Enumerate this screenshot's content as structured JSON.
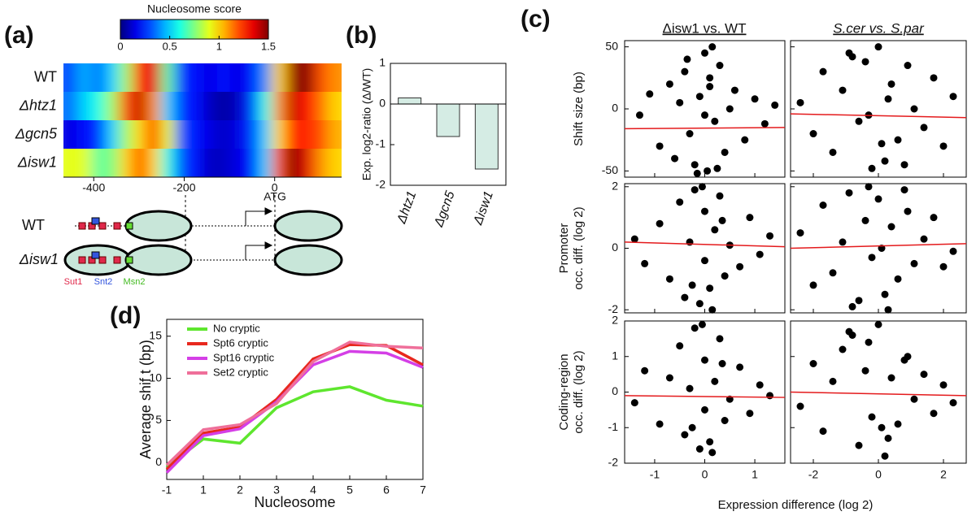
{
  "chart_data": [
    {
      "type": "heatmap",
      "panel": "(a)",
      "colorbar_title": "Nucleosome score",
      "colormap": "jet",
      "clim": [
        0,
        1.5
      ],
      "cticks": [
        0,
        0.5,
        1,
        1.5
      ],
      "rows": [
        "WT",
        "Δhtz1",
        "Δgcn5",
        "Δisw1"
      ],
      "xlim": [
        -467,
        148
      ],
      "xticks": [
        -400,
        -200,
        0
      ],
      "values": [
        [
          0.3,
          0.45,
          0.35,
          0.5,
          0.8,
          1.3,
          1.35,
          0.7,
          0.25,
          0.2,
          0.15,
          0.2,
          0.15,
          0.2,
          0.4,
          1.0,
          1.45,
          1.5,
          1.2,
          1.1
        ],
        [
          0.35,
          0.5,
          0.6,
          0.8,
          1.2,
          1.4,
          1.1,
          0.5,
          0.25,
          0.2,
          0.1,
          0.05,
          0.1,
          0.25,
          0.6,
          1.1,
          1.4,
          1.3,
          1.15,
          1.0
        ],
        [
          0.15,
          0.2,
          0.25,
          0.5,
          0.8,
          1.0,
          1.25,
          0.9,
          0.3,
          0.2,
          0.15,
          0.1,
          0.15,
          0.25,
          0.5,
          1.0,
          1.3,
          1.25,
          1.2,
          1.05
        ],
        [
          0.9,
          0.9,
          0.7,
          0.75,
          1.0,
          1.2,
          1.0,
          0.6,
          0.3,
          0.2,
          0.1,
          0.1,
          0.15,
          0.2,
          0.5,
          1.2,
          1.5,
          1.35,
          1.1,
          1.0
        ]
      ]
    },
    {
      "type": "bar",
      "panel": "(b)",
      "ylabel": "Exp. log2-ratio (Δ/WT)",
      "categories": [
        "Δhtz1",
        "Δgcn5",
        "Δisw1"
      ],
      "values": [
        0.15,
        -0.8,
        -1.6
      ],
      "color": "#d5ece4",
      "ylim": [
        -2,
        1
      ],
      "yticks": [
        -2,
        -1,
        0,
        1
      ]
    },
    {
      "type": "scatter",
      "color": "#000",
      "xlim": [
        -1.6,
        1.6
      ],
      "xticks": [
        -1,
        0,
        1
      ],
      "ylim": [
        -55,
        55
      ],
      "yticks": [
        -50,
        0,
        50
      ],
      "x": [
        -1.3,
        -1.1,
        -0.9,
        -0.7,
        -0.6,
        -0.5,
        -0.4,
        -0.3,
        -0.2,
        -0.1,
        0,
        0.05,
        0.1,
        0.2,
        0.3,
        0.4,
        0.5,
        0.6,
        0.8,
        1.0,
        1.2,
        1.4,
        -0.15,
        0.15,
        0,
        0.25,
        -0.35,
        0.1
      ],
      "y": [
        -5,
        12,
        -30,
        20,
        -40,
        5,
        30,
        -20,
        -45,
        10,
        45,
        -50,
        25,
        -10,
        35,
        -35,
        0,
        15,
        -25,
        8,
        -12,
        3,
        -52,
        50,
        -5,
        -48,
        40,
        18
      ],
      "fit": {
        "color": "#e41a1c",
        "values": [
          -16,
          -15
        ]
      }
    },
    {
      "type": "scatter",
      "color": "#000",
      "xlim": [
        -2.7,
        2.7
      ],
      "xticks": [
        -2,
        0,
        2
      ],
      "ylim": [
        -55,
        55
      ],
      "yticks": [
        -50,
        0,
        50
      ],
      "x": [
        -2.4,
        -2.0,
        -1.7,
        -1.4,
        -1.1,
        -0.9,
        -0.6,
        -0.4,
        -0.2,
        0,
        0.2,
        0.4,
        0.6,
        0.9,
        1.1,
        1.4,
        1.7,
        2.0,
        2.3,
        -0.3,
        0.3,
        0.8,
        -0.8,
        0.1
      ],
      "y": [
        5,
        -20,
        30,
        -35,
        15,
        45,
        -10,
        38,
        -48,
        50,
        -42,
        20,
        -25,
        35,
        0,
        -15,
        25,
        -30,
        10,
        -5,
        8,
        -45,
        42,
        -28
      ],
      "fit": {
        "color": "#e41a1c",
        "values": [
          -4,
          -7
        ]
      }
    },
    {
      "type": "scatter",
      "color": "#000",
      "xlim": [
        -1.6,
        1.6
      ],
      "xticks": [
        -1,
        0,
        1
      ],
      "ylim": [
        -2.1,
        2.1
      ],
      "yticks": [
        -2,
        0,
        2
      ],
      "x": [
        -1.4,
        -1.2,
        -0.9,
        -0.7,
        -0.5,
        -0.4,
        -0.3,
        -0.2,
        -0.1,
        0,
        0,
        0.1,
        0.2,
        0.3,
        0.4,
        0.5,
        0.7,
        0.9,
        1.1,
        1.3,
        -0.05,
        0.15,
        -0.25,
        0.35
      ],
      "y": [
        0.3,
        -0.5,
        0.8,
        -1.0,
        1.5,
        -1.6,
        0.2,
        1.9,
        -1.8,
        1.2,
        -0.4,
        -1.3,
        0.6,
        1.7,
        -0.9,
        0.1,
        -0.6,
        1.0,
        -0.2,
        0.4,
        2.0,
        -2.0,
        -1.2,
        0.9
      ],
      "fit": {
        "color": "#e41a1c",
        "values": [
          0.2,
          0.05
        ]
      }
    },
    {
      "type": "scatter",
      "color": "#000",
      "xlim": [
        -2.7,
        2.7
      ],
      "xticks": [
        -2,
        0,
        2
      ],
      "ylim": [
        -2.1,
        2.1
      ],
      "yticks": [
        -2,
        0,
        2
      ],
      "x": [
        -2.4,
        -2.0,
        -1.7,
        -1.4,
        -1.1,
        -0.9,
        -0.6,
        -0.4,
        -0.2,
        0,
        0.2,
        0.4,
        0.6,
        0.9,
        1.1,
        1.4,
        1.7,
        2.0,
        2.3,
        -0.3,
        0.3,
        0.8,
        -0.8,
        0.1
      ],
      "y": [
        0.5,
        -1.2,
        1.4,
        -0.8,
        0.2,
        1.8,
        -1.7,
        0.9,
        -0.3,
        1.6,
        -1.5,
        0.7,
        -1.0,
        1.2,
        -0.5,
        0.3,
        1.0,
        -0.6,
        -0.1,
        2.0,
        -2.0,
        1.9,
        -1.9,
        0.0
      ],
      "fit": {
        "color": "#e41a1c",
        "values": [
          0,
          0.15
        ]
      }
    },
    {
      "type": "scatter",
      "color": "#000",
      "xlim": [
        -1.6,
        1.6
      ],
      "xticks": [
        -1,
        0,
        1
      ],
      "ylim": [
        -2,
        2
      ],
      "yticks": [
        -2,
        -1,
        0,
        1,
        2
      ],
      "x": [
        -1.4,
        -1.2,
        -0.9,
        -0.7,
        -0.5,
        -0.4,
        -0.3,
        -0.2,
        -0.1,
        0,
        0,
        0.1,
        0.2,
        0.3,
        0.4,
        0.5,
        0.7,
        0.9,
        1.1,
        1.3,
        -0.05,
        0.15,
        -0.25,
        0.35
      ],
      "y": [
        -0.3,
        0.6,
        -0.9,
        0.4,
        1.3,
        -1.2,
        0.1,
        1.8,
        -1.6,
        0.9,
        -0.5,
        -1.4,
        0.3,
        1.5,
        -0.8,
        -0.2,
        0.7,
        -0.6,
        0.2,
        -0.1,
        1.9,
        -1.7,
        -1.0,
        0.8
      ],
      "fit": {
        "color": "#e41a1c",
        "values": [
          -0.1,
          -0.15
        ]
      }
    },
    {
      "type": "scatter",
      "color": "#000",
      "xlim": [
        -2.7,
        2.7
      ],
      "xticks": [
        -2,
        0,
        2
      ],
      "ylim": [
        -2,
        2
      ],
      "yticks": [
        -2,
        -1,
        0,
        1,
        2
      ],
      "x": [
        -2.4,
        -2.0,
        -1.7,
        -1.4,
        -1.1,
        -0.9,
        -0.6,
        -0.4,
        -0.2,
        0,
        0.2,
        0.4,
        0.6,
        0.9,
        1.1,
        1.4,
        1.7,
        2.0,
        2.3,
        -0.3,
        0.3,
        0.8,
        -0.8,
        0.1
      ],
      "y": [
        -0.4,
        0.8,
        -1.1,
        0.3,
        1.2,
        1.7,
        -1.5,
        0.6,
        -0.7,
        1.9,
        -1.8,
        0.4,
        -0.9,
        1.0,
        -0.2,
        0.5,
        -0.6,
        0.2,
        -0.3,
        1.4,
        -1.3,
        0.9,
        1.6,
        -1.0
      ],
      "fit": {
        "color": "#e41a1c",
        "values": [
          0,
          -0.1
        ]
      }
    },
    {
      "type": "line",
      "panel": "(d)",
      "xlabel": "Nucleosome",
      "ylabel": "Average shif t (bp)",
      "categories": [
        "-1",
        "1",
        "2",
        "3",
        "4",
        "5",
        "6",
        "7"
      ],
      "ylim": [
        -2,
        17
      ],
      "yticks": [
        0,
        5,
        10,
        15
      ],
      "series": [
        {
          "name": "No cryptic",
          "color": "#5ee62e",
          "values": [
            -0.5,
            2.8,
            2.3,
            6.5,
            8.4,
            9,
            7.4,
            6.7
          ]
        },
        {
          "name": "Spt6 cryptic",
          "color": "#e8281e",
          "values": [
            -0.8,
            3.5,
            4.2,
            7.5,
            12.3,
            14,
            13.9,
            11.6
          ]
        },
        {
          "name": "Spt16 cryptic",
          "color": "#d43fe6",
          "values": [
            -1.2,
            3.2,
            4,
            7.2,
            11.6,
            13.2,
            13,
            11.3
          ]
        },
        {
          "name": "Set2 cryptic",
          "color": "#ef6f9a",
          "values": [
            -0.3,
            3.9,
            4.5,
            7,
            12,
            14.3,
            13.8,
            13.6
          ]
        }
      ]
    }
  ],
  "panel_c": {
    "panel": "(c)",
    "column_titles": [
      "Δisw1 vs. WT",
      "S.cer vs. S.par"
    ],
    "row_labels": [
      [
        "Shift size (bp)"
      ],
      [
        "Promoter",
        "occ. diff. (log 2)"
      ],
      [
        "Coding-region",
        "occ. diff. (log 2)"
      ]
    ],
    "xlabel": "Expression difference (log 2)"
  },
  "diagram": {
    "rows": [
      "WT",
      "Δisw1"
    ],
    "motifs": [
      "Sut1",
      "Snt2",
      "Msn2"
    ],
    "marker": "ATG"
  }
}
